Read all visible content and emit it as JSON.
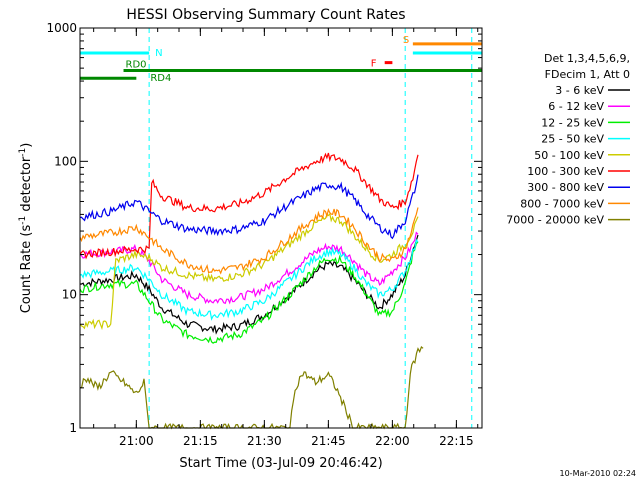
{
  "chart_data": {
    "type": "line",
    "title": "HESSI Observing Summary Count Rates",
    "xlabel": "Start Time (03-Jul-09 20:46:42)",
    "ylabel": "Count Rate (s⁻¹ detector⁻¹)",
    "ylabel_parts": {
      "a": "Count Rate (s",
      "b": "-1",
      "c": " detector",
      "d": "-1",
      "e": ")"
    },
    "yscale": "log",
    "ylim": [
      1,
      1000
    ],
    "xlim_minutes": [
      20.78,
      22.35
    ],
    "x_ticks": [
      {
        "label": "21:00",
        "t": 21.0
      },
      {
        "label": "21:15",
        "t": 21.25
      },
      {
        "label": "21:30",
        "t": 21.5
      },
      {
        "label": "21:45",
        "t": 21.75
      },
      {
        "label": "22:00",
        "t": 22.0
      },
      {
        "label": "22:15",
        "t": 22.25
      }
    ],
    "y_ticks": [
      {
        "label": "1",
        "v": 1
      },
      {
        "label": "10",
        "v": 10
      },
      {
        "label": "100",
        "v": 100
      },
      {
        "label": "1000",
        "v": 1000
      }
    ],
    "legend": {
      "header1": "Det 1,3,4,5,6,9,",
      "header2": "FDecim 1, Att 0",
      "placement": "right"
    },
    "series": [
      {
        "name": "3 - 6 keV",
        "color": "#000000",
        "x": [
          20.78,
          20.9,
          21.0,
          21.05,
          21.1,
          21.2,
          21.3,
          21.4,
          21.5,
          21.6,
          21.7,
          21.75,
          21.8,
          21.85,
          21.9,
          21.95,
          22.0,
          22.05,
          22.08,
          22.1
        ],
        "values": [
          12,
          13,
          14,
          11,
          8,
          6,
          5.5,
          5.8,
          7,
          10,
          15,
          17,
          16,
          13,
          10,
          8,
          10,
          14,
          22,
          28
        ]
      },
      {
        "name": "6 - 12 keV",
        "color": "#ff00ff",
        "x": [
          20.78,
          20.9,
          21.0,
          21.05,
          21.1,
          21.2,
          21.3,
          21.4,
          21.5,
          21.6,
          21.7,
          21.75,
          21.8,
          21.85,
          21.9,
          21.95,
          22.0,
          22.05,
          22.08,
          22.1
        ],
        "values": [
          20,
          21,
          22,
          18,
          13,
          10,
          9,
          9.5,
          11,
          15,
          21,
          23,
          22,
          18,
          14,
          12,
          15,
          19,
          24,
          30
        ]
      },
      {
        "name": "12 - 25 keV",
        "color": "#00ee00",
        "x": [
          20.78,
          20.9,
          21.0,
          21.05,
          21.1,
          21.2,
          21.3,
          21.4,
          21.5,
          21.6,
          21.7,
          21.75,
          21.8,
          21.85,
          21.9,
          21.95,
          22.0,
          22.05,
          22.08,
          22.1
        ],
        "values": [
          11,
          12,
          12,
          9,
          6.5,
          5,
          4.6,
          5,
          6.5,
          10,
          16,
          19,
          18,
          14,
          10,
          7,
          7.5,
          12,
          20,
          25
        ]
      },
      {
        "name": "25 - 50 keV",
        "color": "#00ffff",
        "x": [
          20.78,
          20.9,
          21.0,
          21.05,
          21.1,
          21.2,
          21.3,
          21.4,
          21.5,
          21.6,
          21.7,
          21.75,
          21.8,
          21.85,
          21.9,
          21.95,
          22.0,
          22.05,
          22.08,
          22.1
        ],
        "values": [
          14,
          15,
          16,
          13,
          10,
          7.5,
          7,
          7.5,
          9,
          13,
          19,
          21,
          20,
          16,
          12,
          10,
          11,
          15,
          21,
          26
        ]
      },
      {
        "name": "50 - 100 keV",
        "color": "#cccc00",
        "x": [
          20.78,
          20.82,
          20.9,
          20.92,
          21.0,
          21.05,
          21.1,
          21.2,
          21.3,
          21.4,
          21.5,
          21.6,
          21.7,
          21.75,
          21.8,
          21.85,
          21.9,
          21.95,
          22.0,
          22.05,
          22.08,
          22.1
        ],
        "values": [
          6,
          6,
          6,
          18,
          20,
          19,
          16,
          14,
          13,
          14,
          17,
          24,
          34,
          38,
          36,
          28,
          22,
          18,
          20,
          24,
          30,
          36
        ]
      },
      {
        "name": "100 - 300 keV",
        "color": "#ff0000",
        "x": [
          20.78,
          20.9,
          21.0,
          21.05,
          21.06,
          21.1,
          21.2,
          21.3,
          21.4,
          21.5,
          21.6,
          21.7,
          21.75,
          21.8,
          21.85,
          21.9,
          21.95,
          22.0,
          22.05,
          22.08,
          22.1
        ],
        "values": [
          20,
          21,
          22,
          22,
          70,
          55,
          45,
          44,
          48,
          58,
          78,
          100,
          108,
          104,
          88,
          68,
          52,
          45,
          50,
          75,
          115
        ]
      },
      {
        "name": "300 - 800 keV",
        "color": "#0000ee",
        "x": [
          20.78,
          20.9,
          21.0,
          21.05,
          21.1,
          21.2,
          21.3,
          21.4,
          21.5,
          21.6,
          21.7,
          21.75,
          21.8,
          21.85,
          21.9,
          21.95,
          22.0,
          22.05,
          22.08,
          22.1
        ],
        "values": [
          38,
          42,
          50,
          42,
          36,
          31,
          30,
          31,
          36,
          48,
          62,
          67,
          64,
          52,
          40,
          32,
          28,
          36,
          55,
          75
        ]
      },
      {
        "name": "800 - 7000 keV",
        "color": "#ff8800",
        "x": [
          20.78,
          20.9,
          21.0,
          21.05,
          21.1,
          21.2,
          21.3,
          21.4,
          21.5,
          21.6,
          21.7,
          21.75,
          21.8,
          21.85,
          21.9,
          21.95,
          22.0,
          22.05,
          22.08,
          22.1
        ],
        "values": [
          27,
          29,
          32,
          27,
          22,
          17,
          15,
          16,
          19,
          27,
          38,
          42,
          40,
          32,
          24,
          19,
          18,
          22,
          32,
          45
        ]
      },
      {
        "name": "7000 - 20000 keV",
        "color": "#808000",
        "x": [
          20.78,
          20.8,
          20.85,
          20.9,
          20.95,
          21.0,
          21.03,
          21.05,
          21.6,
          21.62,
          21.65,
          21.7,
          21.75,
          21.78,
          21.85,
          22.05,
          22.07,
          22.1,
          22.12
        ],
        "values": [
          2.0,
          2.4,
          2.0,
          2.6,
          2.2,
          1.8,
          2.2,
          1.0,
          1.0,
          2.0,
          2.6,
          2.2,
          2.5,
          2.0,
          1.0,
          1.0,
          2.6,
          3.8,
          4.0
        ]
      }
    ],
    "annotations": {
      "N": {
        "label": "N",
        "color": "#00ffff",
        "v": 650,
        "t_start": 20.78,
        "t_end": 21.05
      },
      "RD0": {
        "label": "RD0",
        "color": "#008800",
        "v": 480,
        "t_start": 20.95,
        "t_end": 22.35
      },
      "RD4": {
        "label": "RD4",
        "color": "#008800",
        "v": 420,
        "t_start": 20.78,
        "t_end": 21.0
      },
      "F": {
        "label": "F",
        "color": "#ff0000",
        "v": 550,
        "t_start": 21.97,
        "t_end": 22.0
      },
      "S": {
        "label": "S",
        "color": "#ff8800",
        "v": 760,
        "t_start": 22.08,
        "t_end": 22.35
      },
      "S_cyan_level": 650,
      "saa_boundaries_t": [
        20.78,
        21.05,
        22.05,
        22.31
      ]
    },
    "footer_date": "10-Mar-2010 02:24"
  }
}
